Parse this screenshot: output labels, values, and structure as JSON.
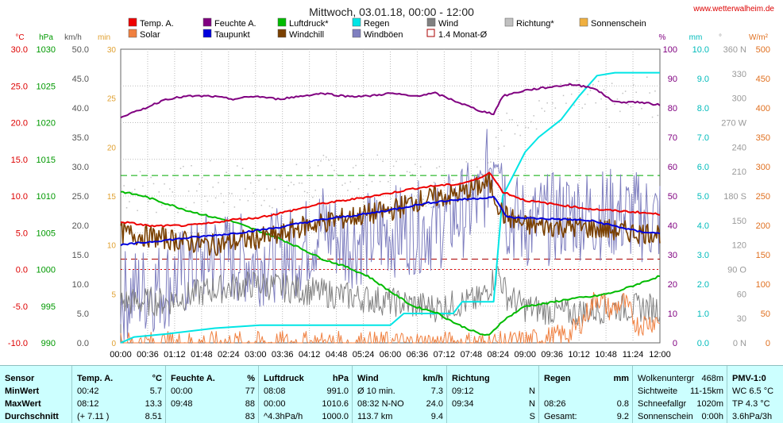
{
  "header": {
    "title": "Mittwoch, 03.01.18, 00:00 - 12:00",
    "website": "www.wetterwalheim.de"
  },
  "axis_units": {
    "temp": "°C",
    "pressure": "hPa",
    "wind": "km/h",
    "sunshine": "min",
    "humidity": "%",
    "rain": "mm",
    "direction": "°",
    "solar": "W/m²"
  },
  "legend": [
    {
      "label": "Temp. A.",
      "color": "#ee0000",
      "style": "fill"
    },
    {
      "label": "Feuchte A.",
      "color": "#800080",
      "style": "fill"
    },
    {
      "label": "Luftdruck*",
      "color": "#00bb00",
      "style": "fill"
    },
    {
      "label": "Regen",
      "color": "#00e5e5",
      "style": "fill"
    },
    {
      "label": "Wind",
      "color": "#808080",
      "style": "fill"
    },
    {
      "label": "Richtung*",
      "color": "#c0c0c0",
      "style": "fill"
    },
    {
      "label": "Sonnenschein",
      "color": "#f0b040",
      "style": "fill"
    },
    {
      "label": "Solar",
      "color": "#f08040",
      "style": "fill"
    },
    {
      "label": "Taupunkt",
      "color": "#0000dd",
      "style": "fill"
    },
    {
      "label": "Windchill",
      "color": "#7a4000",
      "style": "fill"
    },
    {
      "label": "Windböen",
      "color": "#8080c0",
      "style": "fill"
    },
    {
      "label": "1.4 Monat-Ø",
      "color": "#aa0000",
      "style": "outline"
    }
  ],
  "chart_data": {
    "type": "line",
    "x_ticks": [
      "00:00",
      "00:36",
      "01:12",
      "01:48",
      "02:24",
      "03:00",
      "03:36",
      "04:12",
      "04:48",
      "05:24",
      "06:00",
      "06:36",
      "07:12",
      "07:48",
      "08:24",
      "09:00",
      "09:36",
      "10:12",
      "10:48",
      "11:24",
      "12:00"
    ],
    "x_range_hours": [
      0,
      12
    ],
    "axes": {
      "temp": {
        "unit": "°C",
        "range": [
          -10,
          30
        ],
        "ticks": [
          "30.0",
          "25.0",
          "20.0",
          "15.0",
          "10.0",
          "5.0",
          "0.0",
          "-5.0",
          "-10.0"
        ]
      },
      "pressure": {
        "unit": "hPa",
        "range": [
          990,
          1030
        ],
        "ticks": [
          "1030",
          "1025",
          "1020",
          "1015",
          "1010",
          "1005",
          "1000",
          "995",
          "990"
        ]
      },
      "wind": {
        "unit": "km/h",
        "range": [
          0,
          50
        ],
        "ticks": [
          "50.0",
          "45.0",
          "40.0",
          "35.0",
          "30.0",
          "25.0",
          "20.0",
          "15.0",
          "10.0",
          "5.0",
          "0.0"
        ]
      },
      "sunshine": {
        "unit": "min",
        "range": [
          0,
          30
        ],
        "ticks": [
          "30",
          "25",
          "20",
          "15",
          "10",
          "5",
          "0"
        ]
      },
      "humidity": {
        "unit": "%",
        "range": [
          0,
          100
        ],
        "ticks": [
          "100",
          "90",
          "80",
          "70",
          "60",
          "50",
          "40",
          "30",
          "20",
          "10",
          "0"
        ]
      },
      "rain": {
        "unit": "mm",
        "range": [
          0,
          10
        ],
        "ticks": [
          "10.0",
          "9.0",
          "8.0",
          "7.0",
          "6.0",
          "5.0",
          "4.0",
          "3.0",
          "2.0",
          "1.0",
          "0.0"
        ]
      },
      "direction": {
        "unit": "°",
        "range": [
          0,
          360
        ],
        "ticks": [
          "360 N",
          "330",
          "300",
          "270 W",
          "240",
          "210",
          "180 S",
          "150",
          "120",
          "90 O",
          "60",
          "30",
          "0 N"
        ]
      },
      "solar": {
        "unit": "W/m²",
        "range": [
          0,
          500
        ],
        "ticks": [
          "500",
          "450",
          "400",
          "350",
          "300",
          "250",
          "200",
          "150",
          "100",
          "50",
          "0"
        ]
      }
    },
    "reference_lines": {
      "temp_avg_high": 12.8,
      "temp_avg_low": 1.4,
      "temp_zero": 0.0
    },
    "series": [
      {
        "name": "Temp. A.",
        "axis": "temp",
        "color": "#ee0000",
        "points": [
          [
            0,
            6.5
          ],
          [
            0.7,
            5.9
          ],
          [
            1.5,
            6.0
          ],
          [
            2,
            6.3
          ],
          [
            2.5,
            6.8
          ],
          [
            3,
            7.0
          ],
          [
            3.5,
            7.6
          ],
          [
            4,
            8.3
          ],
          [
            4.5,
            9.0
          ],
          [
            5,
            9.4
          ],
          [
            5.5,
            9.9
          ],
          [
            6,
            10.4
          ],
          [
            6.5,
            11.0
          ],
          [
            7,
            11.4
          ],
          [
            7.5,
            11.6
          ],
          [
            8,
            12.4
          ],
          [
            8.2,
            13.3
          ],
          [
            8.5,
            10.6
          ],
          [
            9,
            9.4
          ],
          [
            9.5,
            9.0
          ],
          [
            10,
            8.6
          ],
          [
            10.5,
            8.2
          ],
          [
            11,
            8.0
          ],
          [
            11.5,
            7.8
          ],
          [
            12,
            7.5
          ]
        ]
      },
      {
        "name": "Taupunkt",
        "axis": "temp",
        "color": "#0000dd",
        "points": [
          [
            0,
            3.3
          ],
          [
            0.7,
            3.8
          ],
          [
            1.5,
            4.3
          ],
          [
            2,
            4.6
          ],
          [
            2.5,
            4.9
          ],
          [
            3,
            5.3
          ],
          [
            3.5,
            5.7
          ],
          [
            4,
            6.3
          ],
          [
            4.5,
            6.8
          ],
          [
            5,
            7.2
          ],
          [
            5.5,
            7.6
          ],
          [
            6,
            8.1
          ],
          [
            6.5,
            8.7
          ],
          [
            7,
            9.2
          ],
          [
            7.5,
            9.5
          ],
          [
            8,
            9.7
          ],
          [
            8.3,
            9.9
          ],
          [
            8.6,
            7.1
          ],
          [
            9,
            7.0
          ],
          [
            9.5,
            6.9
          ],
          [
            10,
            6.8
          ],
          [
            10.5,
            6.6
          ],
          [
            11,
            5.9
          ],
          [
            11.5,
            5.2
          ],
          [
            12,
            4.9
          ]
        ]
      },
      {
        "name": "Feuchte A.",
        "axis": "humidity",
        "color": "#800080",
        "points": [
          [
            0,
            77
          ],
          [
            0.4,
            79
          ],
          [
            1,
            83
          ],
          [
            1.5,
            84
          ],
          [
            2,
            84
          ],
          [
            2.5,
            83
          ],
          [
            3,
            84
          ],
          [
            3.5,
            83
          ],
          [
            4,
            84
          ],
          [
            4.5,
            85
          ],
          [
            5,
            84
          ],
          [
            5.5,
            84
          ],
          [
            6,
            85
          ],
          [
            6.5,
            84
          ],
          [
            7,
            85
          ],
          [
            7.5,
            82
          ],
          [
            8,
            79
          ],
          [
            8.3,
            78
          ],
          [
            8.5,
            84
          ],
          [
            9,
            86
          ],
          [
            9.5,
            87
          ],
          [
            10,
            88
          ],
          [
            10.5,
            87
          ],
          [
            11,
            82
          ],
          [
            11.5,
            82
          ],
          [
            12,
            81
          ]
        ]
      },
      {
        "name": "Luftdruck*",
        "axis": "pressure",
        "color": "#00bb00",
        "points": [
          [
            0,
            1010.6
          ],
          [
            0.5,
            1010.0
          ],
          [
            1,
            1009.0
          ],
          [
            1.5,
            1008.0
          ],
          [
            2,
            1007.2
          ],
          [
            2.5,
            1006.5
          ],
          [
            3,
            1005.4
          ],
          [
            3.5,
            1004.3
          ],
          [
            4,
            1002.9
          ],
          [
            4.5,
            1001.4
          ],
          [
            5,
            1000.4
          ],
          [
            5.5,
            999.1
          ],
          [
            6,
            997.0
          ],
          [
            6.5,
            995.0
          ],
          [
            7,
            994.2
          ],
          [
            7.5,
            992.5
          ],
          [
            8,
            991.2
          ],
          [
            8.2,
            991.0
          ],
          [
            8.5,
            993.0
          ],
          [
            9,
            995.0
          ],
          [
            9.5,
            995.4
          ],
          [
            10,
            996.0
          ],
          [
            10.5,
            996.3
          ],
          [
            11,
            996.9
          ],
          [
            11.5,
            998.0
          ],
          [
            12,
            999.1
          ]
        ]
      },
      {
        "name": "Regen",
        "axis": "rain",
        "color": "#00e5e5",
        "points": [
          [
            0,
            0
          ],
          [
            0.3,
            0.2
          ],
          [
            1,
            0.3
          ],
          [
            2.1,
            0.5
          ],
          [
            3.1,
            0.6
          ],
          [
            6,
            0.6
          ],
          [
            6.3,
            1.0
          ],
          [
            7.4,
            1.0
          ],
          [
            7.6,
            1.4
          ],
          [
            8.3,
            1.4
          ],
          [
            8.5,
            5.0
          ],
          [
            9,
            6.5
          ],
          [
            9.3,
            7.0
          ],
          [
            9.8,
            7.6
          ],
          [
            10.2,
            8.4
          ],
          [
            10.6,
            9.1
          ],
          [
            11,
            9.2
          ],
          [
            12,
            9.2
          ]
        ]
      },
      {
        "name": "Windchill",
        "axis": "temp",
        "color": "#7a4000",
        "noisy": true,
        "amplitude": 1.5,
        "points": [
          [
            0,
            5.0
          ],
          [
            1,
            4.2
          ],
          [
            2,
            3.3
          ],
          [
            3,
            4.2
          ],
          [
            3.5,
            4.5
          ],
          [
            4,
            5.8
          ],
          [
            5,
            7.0
          ],
          [
            6,
            8.0
          ],
          [
            6.5,
            9.2
          ],
          [
            7,
            9.8
          ],
          [
            7.5,
            10.2
          ],
          [
            8.2,
            11.8
          ],
          [
            8.5,
            7.5
          ],
          [
            9,
            6.0
          ],
          [
            10,
            5.8
          ],
          [
            10.5,
            5.6
          ],
          [
            11,
            5.3
          ],
          [
            11.5,
            5.0
          ],
          [
            12,
            5.0
          ]
        ]
      },
      {
        "name": "Windböen",
        "axis": "wind",
        "color": "#8080c0",
        "noisy": true,
        "amplitude": 8,
        "points": [
          [
            0,
            8
          ],
          [
            1,
            10
          ],
          [
            2,
            15
          ],
          [
            3,
            14
          ],
          [
            4,
            16
          ],
          [
            4.5,
            20
          ],
          [
            5,
            17
          ],
          [
            6,
            19
          ],
          [
            7,
            20
          ],
          [
            8,
            24
          ],
          [
            8.4,
            36
          ],
          [
            8.6,
            22
          ],
          [
            9,
            20
          ],
          [
            10,
            22
          ],
          [
            11,
            22
          ],
          [
            12,
            21
          ]
        ]
      },
      {
        "name": "Wind",
        "axis": "wind",
        "color": "#808080",
        "noisy": true,
        "amplitude": 2.5,
        "points": [
          [
            0,
            7
          ],
          [
            1,
            7
          ],
          [
            2,
            9
          ],
          [
            3,
            10
          ],
          [
            4,
            9
          ],
          [
            5,
            8
          ],
          [
            6,
            7
          ],
          [
            7,
            6
          ],
          [
            8,
            7.3
          ],
          [
            8.4,
            12
          ],
          [
            8.6,
            8
          ],
          [
            9,
            6
          ],
          [
            10,
            5
          ],
          [
            11,
            6
          ],
          [
            12,
            6
          ]
        ]
      },
      {
        "name": "Richtung*",
        "axis": "direction",
        "color": "#c0c0c0",
        "dots": true,
        "points": [
          [
            0,
            190
          ],
          [
            1,
            185
          ],
          [
            2,
            195
          ],
          [
            3,
            190
          ],
          [
            4,
            200
          ],
          [
            5,
            205
          ],
          [
            6,
            200
          ],
          [
            7,
            195
          ],
          [
            8,
            210
          ],
          [
            8.5,
            250
          ],
          [
            9,
            290
          ],
          [
            10,
            295
          ],
          [
            11,
            290
          ],
          [
            12,
            300
          ]
        ]
      },
      {
        "name": "Solar",
        "axis": "solar",
        "color": "#f08040",
        "noisy": true,
        "amplitude": 20,
        "points": [
          [
            0,
            0
          ],
          [
            8.5,
            0
          ],
          [
            9,
            3
          ],
          [
            9.5,
            8
          ],
          [
            10,
            15
          ],
          [
            10.3,
            40
          ],
          [
            10.6,
            80
          ],
          [
            10.9,
            55
          ],
          [
            11.2,
            70
          ],
          [
            11.5,
            30
          ],
          [
            12,
            40
          ]
        ]
      }
    ]
  },
  "table": {
    "columns": [
      {
        "head": "Sensor",
        "unit": "",
        "rows": [
          [
            "MinWert",
            ""
          ],
          [
            "MaxWert",
            ""
          ],
          [
            "Durchschnitt",
            ""
          ]
        ]
      },
      {
        "head": "Temp. A.",
        "unit": "°C",
        "rows": [
          [
            "00:42",
            "5.7"
          ],
          [
            "08:12",
            "13.3"
          ],
          [
            "(+ 7.11 )",
            "8.51"
          ]
        ]
      },
      {
        "head": "Feuchte A.",
        "unit": "%",
        "rows": [
          [
            "00:00",
            "77"
          ],
          [
            "09:48",
            "88"
          ],
          [
            "",
            "83"
          ]
        ]
      },
      {
        "head": "Luftdruck",
        "unit": "hPa",
        "rows": [
          [
            "08:08",
            "991.0"
          ],
          [
            "00:00",
            "1010.6"
          ],
          [
            "^4.3hPa/h",
            "1000.0"
          ]
        ]
      },
      {
        "head": "Wind",
        "unit": "km/h",
        "rows": [
          [
            "Ø 10 min.",
            "7.3"
          ],
          [
            "08:32   N-NO",
            "24.0"
          ],
          [
            "113.7 km",
            "9.4"
          ]
        ]
      },
      {
        "head": "Richtung",
        "unit": "",
        "rows": [
          [
            "09:12",
            "N"
          ],
          [
            "09:34",
            "N"
          ],
          [
            "",
            "S"
          ]
        ]
      },
      {
        "head": "Regen",
        "unit": "mm",
        "rows": [
          [
            "",
            ""
          ],
          [
            "08:26",
            "0.8"
          ],
          [
            "Gesamt:",
            "9.2"
          ]
        ]
      },
      {
        "head": "Wolkenuntergr",
        "unit": "468m",
        "rows": [
          [
            "Sichtweite",
            "11-15km"
          ],
          [
            "Schneefallgr",
            "1020m"
          ],
          [
            "Sonnenschein",
            "0:00h"
          ]
        ]
      },
      {
        "head": "PMV-1:0",
        "unit": "",
        "rows": [
          [
            "WC 6.5 °C",
            ""
          ],
          [
            "TP 4.3 °C",
            ""
          ],
          [
            "3.6hPa/3h",
            ""
          ]
        ]
      }
    ]
  }
}
